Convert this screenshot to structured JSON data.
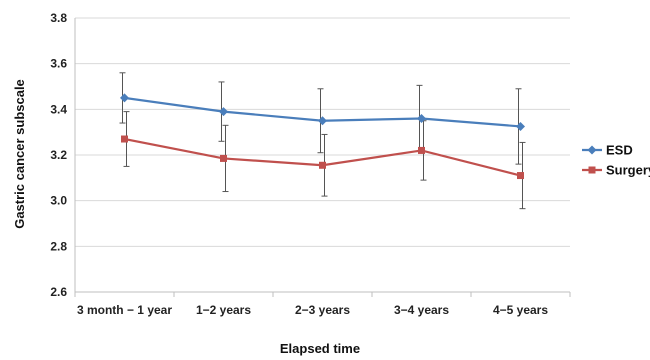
{
  "chart_data": {
    "type": "line",
    "categories": [
      "3 month − 1 year",
      "1−2 years",
      "2−3 years",
      "3−4 years",
      "4−5 years"
    ],
    "series": [
      {
        "name": "ESD",
        "color": "#4a7ebb",
        "marker": "diamond",
        "values": [
          3.45,
          3.39,
          3.35,
          3.36,
          3.325
        ],
        "error": [
          0.11,
          0.13,
          0.14,
          0.145,
          0.165
        ]
      },
      {
        "name": "Surgery",
        "color": "#c0504d",
        "marker": "square",
        "values": [
          3.27,
          3.185,
          3.155,
          3.22,
          3.11
        ],
        "error": [
          0.12,
          0.145,
          0.135,
          0.13,
          0.145
        ]
      }
    ],
    "xlabel": "Elapsed time",
    "ylabel": "Gastric cancer subscale",
    "ylim": [
      2.6,
      3.8
    ],
    "yticks": [
      "2.6",
      "2.8",
      "3.0",
      "3.2",
      "3.4",
      "3.6",
      "3.8"
    ],
    "grid": true,
    "error_bar_color": "#555555",
    "legend_position": "right"
  }
}
